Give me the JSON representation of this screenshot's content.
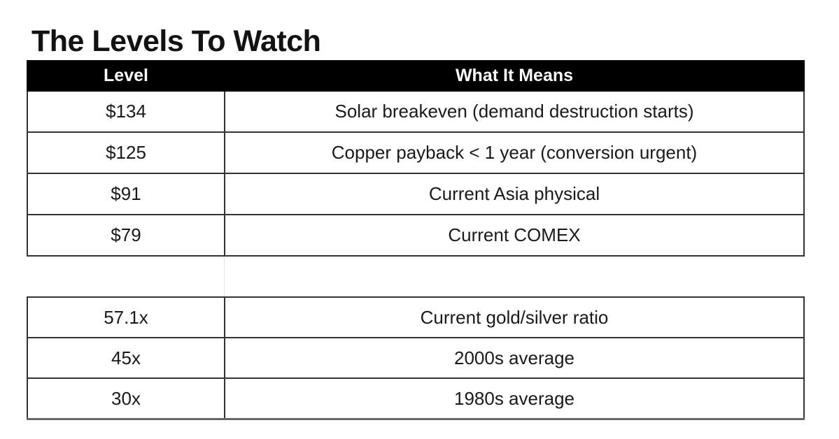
{
  "page": {
    "title": "The Levels To Watch"
  },
  "colors": {
    "header_bg": "#000000",
    "header_text": "#ffffff",
    "body_text": "#1a1a1a",
    "border": "#333333"
  },
  "levels_table": {
    "columns": {
      "level": "Level",
      "meaning": "What It Means"
    },
    "rows": [
      {
        "level": "$134",
        "meaning": "Solar breakeven (demand destruction starts)"
      },
      {
        "level": "$125",
        "meaning": "Copper payback < 1 year (conversion urgent)"
      },
      {
        "level": "$91",
        "meaning": "Current Asia physical"
      },
      {
        "level": "$79",
        "meaning": "Current COMEX"
      }
    ]
  },
  "ratio_table": {
    "rows": [
      {
        "level": "57.1x",
        "meaning": "Current gold/silver ratio"
      },
      {
        "level": "45x",
        "meaning": "2000s average"
      },
      {
        "level": "30x",
        "meaning": "1980s average"
      }
    ]
  }
}
